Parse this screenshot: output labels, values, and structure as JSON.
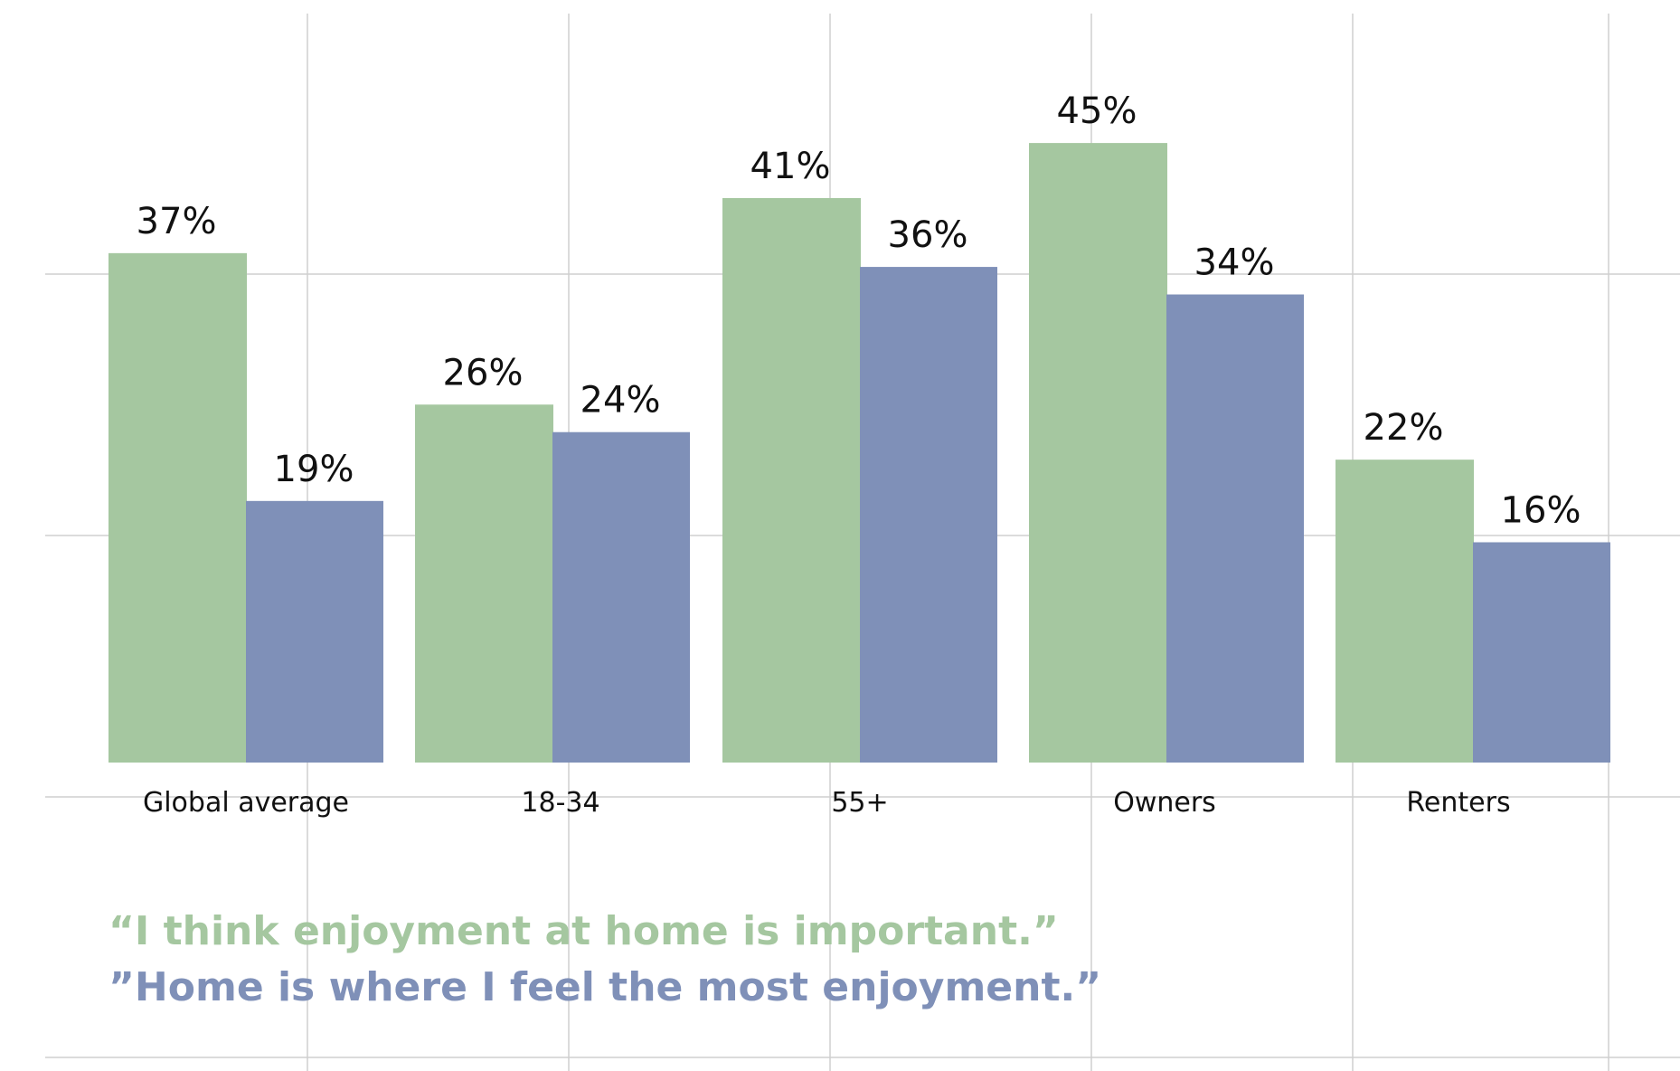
{
  "chart_data": {
    "type": "bar",
    "categories": [
      "Global average",
      "18-34",
      "55+",
      "Owners",
      "Renters"
    ],
    "series": [
      {
        "name": "“I think enjoyment at home is important.”",
        "color": "#a5c7a0",
        "values": [
          37,
          26,
          41,
          45,
          22
        ],
        "labels": [
          "37%",
          "26%",
          "41%",
          "45%",
          "22%"
        ]
      },
      {
        "name": "”Home is where I feel the most enjoyment.”",
        "color": "#7f90b8",
        "values": [
          19,
          24,
          36,
          34,
          16
        ],
        "labels": [
          "19%",
          "24%",
          "36%",
          "34%",
          "16%"
        ]
      }
    ],
    "title": "",
    "xlabel": "",
    "ylabel": "",
    "ylim": [
      0,
      50
    ],
    "grid": true,
    "legend_placement": "bottom-left"
  }
}
